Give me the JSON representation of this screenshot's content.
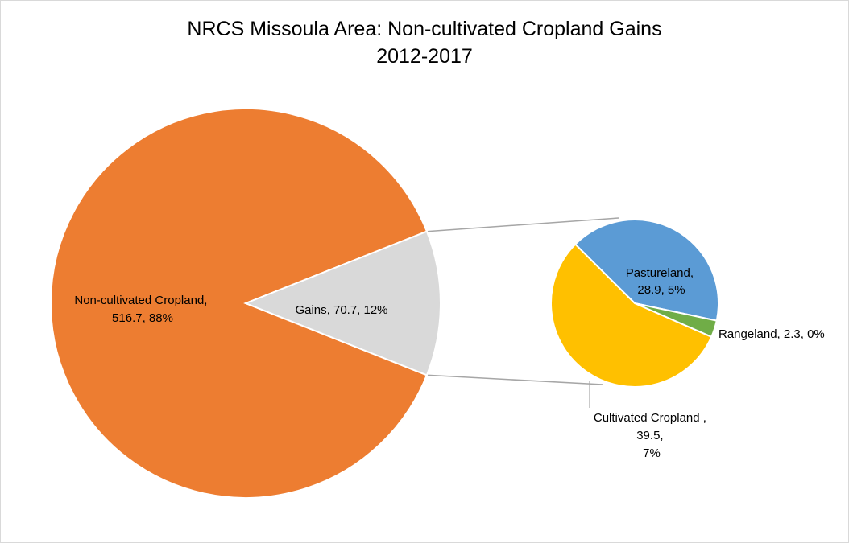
{
  "chart_data": {
    "type": "pie",
    "subtype": "pie-of-pie",
    "title_line1": "NRCS Missoula Area: Non-cultivated Cropland Gains",
    "title_line2": "2012-2017",
    "main_slices": [
      {
        "name": "Non-cultivated Cropland,",
        "value_text": "516.7, 88%",
        "value": 516.7,
        "color": "#ED7D31"
      },
      {
        "name": "Gains, 70.7, 12%",
        "value": 70.7,
        "color": "#D9D9D9"
      }
    ],
    "secondary_slices": [
      {
        "name": "Pastureland,",
        "value_text": "28.9, 5%",
        "value": 28.9,
        "color": "#5B9BD5"
      },
      {
        "name": "Rangeland, 2.3, 0%",
        "value": 2.3,
        "color": "#70AD47"
      },
      {
        "name": "Cultivated Cropland ,",
        "value_text": "39.5,",
        "pct_text": "7%",
        "value": 39.5,
        "color": "#FFC000"
      }
    ]
  }
}
